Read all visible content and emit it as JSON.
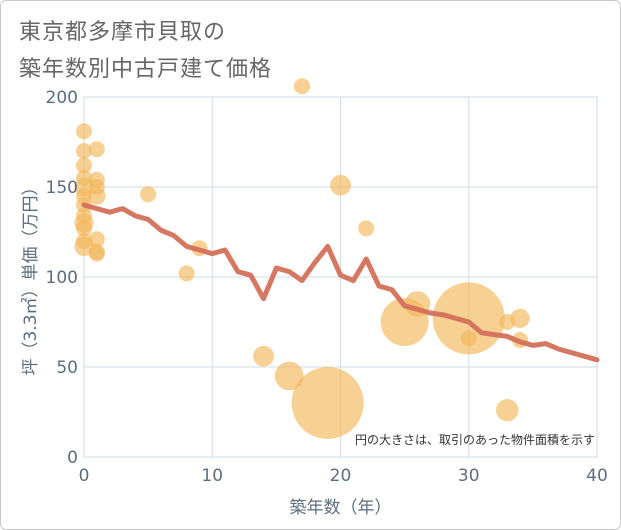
{
  "title_line1": "東京都多摩市貝取の",
  "title_line2": "築年数別中古戸建て価格",
  "note": "円の大きさは、取引のあった物件面積を示す",
  "colors": {
    "line": "#d4705a",
    "bubble": "#f2b75a",
    "grid": "#cfdde6",
    "axis_text": "#5a6e7f",
    "title": "#666666"
  },
  "chart_data": {
    "type": "scatter",
    "title": "東京都多摩市貝取の築年数別中古戸建て価格",
    "xlabel": "築年数（年）",
    "ylabel": "坪（3.3㎡）単価（万円）",
    "xlim": [
      0,
      40
    ],
    "ylim": [
      0,
      200
    ],
    "xticks": [
      0,
      10,
      20,
      30,
      40
    ],
    "yticks": [
      0,
      50,
      100,
      150,
      200
    ],
    "grid": true,
    "series": [
      {
        "type": "line",
        "x": [
          0,
          1,
          2,
          3,
          4,
          5,
          6,
          7,
          8,
          9,
          10,
          11,
          12,
          13,
          14,
          15,
          16,
          17,
          18,
          19,
          20,
          21,
          22,
          23,
          24,
          25,
          26,
          27,
          28,
          29,
          30,
          31,
          32,
          33,
          34,
          35,
          36,
          37,
          38,
          39,
          40
        ],
        "values": [
          140,
          138,
          136,
          138,
          134,
          132,
          126,
          123,
          117,
          115,
          113,
          115,
          103,
          101,
          88,
          105,
          103,
          98,
          108,
          117,
          101,
          98,
          110,
          95,
          93,
          84,
          82,
          80,
          79,
          77,
          75,
          69,
          68,
          67,
          64,
          62,
          63,
          60,
          58,
          56,
          54
        ]
      },
      {
        "type": "bubble",
        "points": [
          {
            "x": 0,
            "y": 181,
            "size": 1
          },
          {
            "x": 0,
            "y": 170,
            "size": 1
          },
          {
            "x": 0,
            "y": 162,
            "size": 1
          },
          {
            "x": 0,
            "y": 155,
            "size": 1
          },
          {
            "x": 0,
            "y": 150,
            "size": 1.2
          },
          {
            "x": 0,
            "y": 145,
            "size": 1
          },
          {
            "x": 0,
            "y": 140,
            "size": 1
          },
          {
            "x": 0,
            "y": 134,
            "size": 1
          },
          {
            "x": 0,
            "y": 130,
            "size": 1.2
          },
          {
            "x": 0,
            "y": 127,
            "size": 1
          },
          {
            "x": 0,
            "y": 120,
            "size": 1
          },
          {
            "x": 0,
            "y": 117,
            "size": 1.2
          },
          {
            "x": 1,
            "y": 171,
            "size": 1
          },
          {
            "x": 1,
            "y": 154,
            "size": 1
          },
          {
            "x": 1,
            "y": 150,
            "size": 1
          },
          {
            "x": 1,
            "y": 145,
            "size": 1.1
          },
          {
            "x": 1,
            "y": 121,
            "size": 1
          },
          {
            "x": 1,
            "y": 114,
            "size": 1
          },
          {
            "x": 1,
            "y": 113,
            "size": 1
          },
          {
            "x": 5,
            "y": 146,
            "size": 1
          },
          {
            "x": 8,
            "y": 102,
            "size": 1
          },
          {
            "x": 9,
            "y": 116,
            "size": 1
          },
          {
            "x": 14,
            "y": 56,
            "size": 1.3
          },
          {
            "x": 16,
            "y": 45,
            "size": 1.8
          },
          {
            "x": 17,
            "y": 206,
            "size": 1
          },
          {
            "x": 19,
            "y": 30,
            "size": 4.5
          },
          {
            "x": 20,
            "y": 151,
            "size": 1.3
          },
          {
            "x": 22,
            "y": 127,
            "size": 1
          },
          {
            "x": 25,
            "y": 75,
            "size": 3
          },
          {
            "x": 26,
            "y": 85,
            "size": 1.6
          },
          {
            "x": 30,
            "y": 77,
            "size": 4.5
          },
          {
            "x": 30,
            "y": 66,
            "size": 1
          },
          {
            "x": 33,
            "y": 75,
            "size": 1
          },
          {
            "x": 33,
            "y": 26,
            "size": 1.4
          },
          {
            "x": 34,
            "y": 77,
            "size": 1.2
          },
          {
            "x": 34,
            "y": 65,
            "size": 1
          }
        ]
      }
    ]
  }
}
